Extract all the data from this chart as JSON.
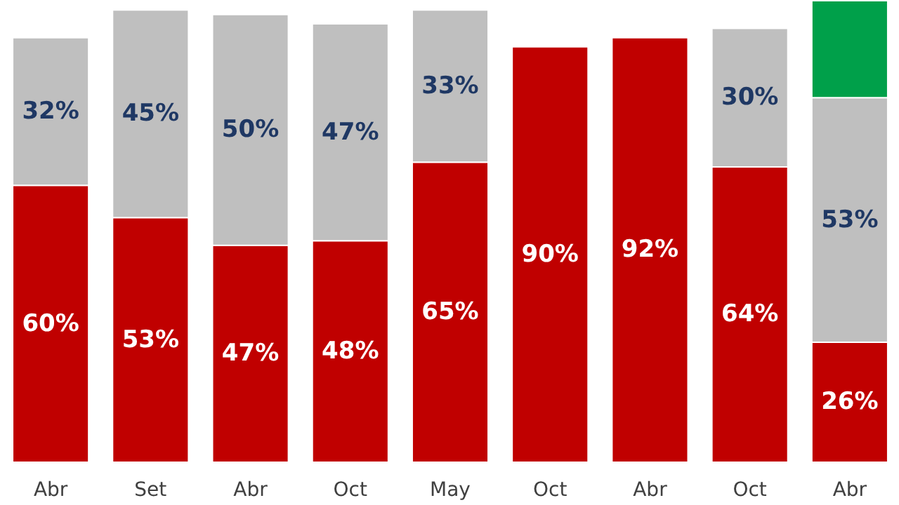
{
  "chart_data": {
    "type": "bar",
    "stacked": true,
    "categories": [
      "Abr",
      "Set",
      "Abr",
      "Oct",
      "May",
      "Oct",
      "Abr",
      "Oct",
      "Abr"
    ],
    "ylim": [
      0,
      100
    ],
    "grid": false,
    "series": [
      {
        "color": "#c00000",
        "values": [
          60,
          53,
          47,
          48,
          65,
          90,
          92,
          64,
          26
        ],
        "value_labels": [
          "60%",
          "53%",
          "47%",
          "48%",
          "65%",
          "90%",
          "92%",
          "64%",
          "26%"
        ]
      },
      {
        "color": "#bfbfbf",
        "values": [
          32,
          45,
          50,
          47,
          33,
          null,
          null,
          30,
          53
        ],
        "value_labels": [
          "32%",
          "45%",
          "50%",
          "47%",
          "33%",
          null,
          null,
          "30%",
          "53%"
        ]
      },
      {
        "color": "#00a04a",
        "values": [
          null,
          null,
          null,
          null,
          null,
          null,
          null,
          null,
          21
        ],
        "value_labels": [
          null,
          null,
          null,
          null,
          null,
          null,
          null,
          null,
          null
        ]
      }
    ]
  }
}
